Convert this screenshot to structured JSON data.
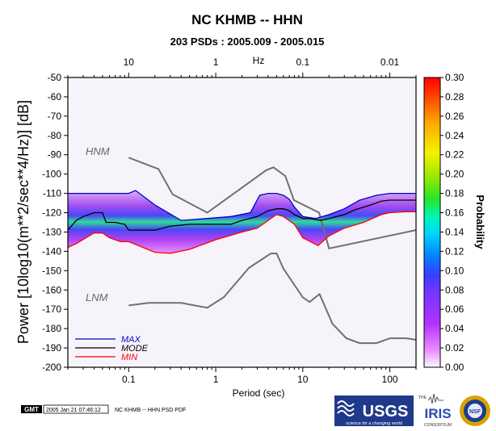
{
  "chart_data": {
    "type": "area",
    "title": "NC KHMB -- HHN",
    "subtitle": "203 PSDs : 2005.009 - 2005.015",
    "xlabel": "Period (sec)",
    "x2label": "Hz",
    "ylabel": "Power [10log10(m**2/sec**4/Hz)] [dB]",
    "x_scale": "log",
    "xlim": [
      0.02,
      200
    ],
    "ylim": [
      -200,
      -50
    ],
    "x_ticks": [
      {
        "value": 0.1,
        "label": "0.1"
      },
      {
        "value": 1,
        "label": "1"
      },
      {
        "value": 10,
        "label": "10"
      },
      {
        "value": 100,
        "label": "100"
      }
    ],
    "freq_ticks": [
      {
        "value": 0.1,
        "label": "10"
      },
      {
        "value": 1,
        "label": "1"
      },
      {
        "value": 10,
        "label": "0.1"
      },
      {
        "value": 100,
        "label": "0.01"
      }
    ],
    "y_ticks": [
      -50,
      -60,
      -70,
      -80,
      -90,
      -100,
      -110,
      -120,
      -130,
      -140,
      -150,
      -160,
      -170,
      -180,
      -190,
      -200
    ],
    "colorbar": {
      "label": "Probability",
      "min": 0.0,
      "max": 0.3,
      "ticks": [
        "0.00",
        "0.02",
        "0.04",
        "0.06",
        "0.08",
        "0.10",
        "0.12",
        "0.14",
        "0.16",
        "0.18",
        "0.20",
        "0.22",
        "0.24",
        "0.26",
        "0.28",
        "0.30"
      ],
      "colors": [
        "#f8f8ff",
        "#e98cff",
        "#b531ff",
        "#7a36ff",
        "#3540ff",
        "#0089ff",
        "#00d5ff",
        "#00f7b6",
        "#27e52a",
        "#9ce800",
        "#f3f200",
        "#ffaa00",
        "#ff5300",
        "#ff0000"
      ]
    },
    "reference_models": [
      {
        "name": "HNM",
        "color": "#707070",
        "x": [
          0.1,
          0.22,
          0.32,
          0.8,
          3.8,
          4.6,
          6.3,
          7.9,
          15.4,
          20,
          200
        ],
        "y": [
          -91.5,
          -97.4,
          -110.5,
          -120,
          -98,
          -96.5,
          -101,
          -113.5,
          -120,
          -138.5,
          -129
        ]
      },
      {
        "name": "LNM",
        "color": "#707070",
        "x": [
          0.1,
          0.17,
          0.4,
          0.8,
          1.24,
          2.4,
          4.3,
          5,
          6,
          10,
          12,
          15.6,
          21.9,
          31.6,
          45,
          70,
          101,
          154,
          200
        ],
        "y": [
          -168,
          -166.7,
          -166.7,
          -169.2,
          -163.7,
          -148.6,
          -141.1,
          -141.1,
          -149,
          -163.8,
          -166.2,
          -162.1,
          -177.5,
          -185,
          -187.5,
          -187.5,
          -185,
          -185,
          -185.8
        ]
      }
    ],
    "series": [
      {
        "name": "MAX",
        "color": "#0000cc",
        "x": [
          0.02,
          0.025,
          0.05,
          0.1,
          0.12,
          0.2,
          0.4,
          0.8,
          1.5,
          2.5,
          3.2,
          4,
          5,
          6,
          7,
          8,
          10,
          14,
          20,
          30,
          45,
          70,
          100,
          150,
          200
        ],
        "y": [
          -110,
          -110,
          -110,
          -110,
          -108.5,
          -116,
          -124,
          -123,
          -122,
          -120,
          -111,
          -110,
          -110,
          -111,
          -113,
          -117,
          -122,
          -123,
          -121,
          -118,
          -113.5,
          -111,
          -110,
          -110,
          -110
        ]
      },
      {
        "name": "MODE",
        "color": "#000000",
        "x": [
          0.02,
          0.025,
          0.03,
          0.04,
          0.05,
          0.055,
          0.07,
          0.09,
          0.1,
          0.2,
          0.3,
          0.5,
          0.7,
          1,
          1.5,
          2,
          3,
          4,
          5,
          6,
          7,
          8,
          10,
          12,
          16,
          20,
          30,
          40,
          60,
          80,
          100,
          140,
          200
        ],
        "y": [
          -129,
          -124,
          -122,
          -120,
          -120,
          -125,
          -125,
          -126,
          -129,
          -129,
          -127,
          -126,
          -126,
          -126,
          -126,
          -124,
          -122,
          -119,
          -118,
          -118,
          -119,
          -121,
          -123,
          -123,
          -124,
          -123,
          -121,
          -118.5,
          -116,
          -114,
          -113.5,
          -113.5,
          -113.5
        ]
      },
      {
        "name": "MIN",
        "color": "#ff0000",
        "x": [
          0.02,
          0.025,
          0.04,
          0.05,
          0.06,
          0.08,
          0.1,
          0.2,
          0.3,
          0.5,
          1,
          2,
          3,
          4,
          5,
          6,
          8,
          10,
          15,
          20,
          30,
          50,
          80,
          100,
          150,
          200
        ],
        "y": [
          -138,
          -136,
          -130.5,
          -130.5,
          -133,
          -135,
          -135,
          -140.5,
          -141,
          -139,
          -134,
          -130,
          -128,
          -124,
          -121,
          -122,
          -126,
          -133,
          -137,
          -132,
          -128,
          -125,
          -121,
          -120,
          -119.5,
          -119.5
        ]
      }
    ],
    "legend": [
      "MAX",
      "MODE",
      "MIN"
    ],
    "legend_position": "bottom-left"
  },
  "footer": {
    "gmt_badge": "GMT",
    "timestamp": "2005 Jan 21 07:46:12",
    "caption": "NC KHMB -- HHN PSD PDF"
  },
  "logos": {
    "usgs_text": "USGS",
    "usgs_tagline": "science for a changing world",
    "iris_the": "THE",
    "iris_text": "IRIS",
    "iris_sub": "CONSORTIUM",
    "nsf_text": "NSF"
  }
}
